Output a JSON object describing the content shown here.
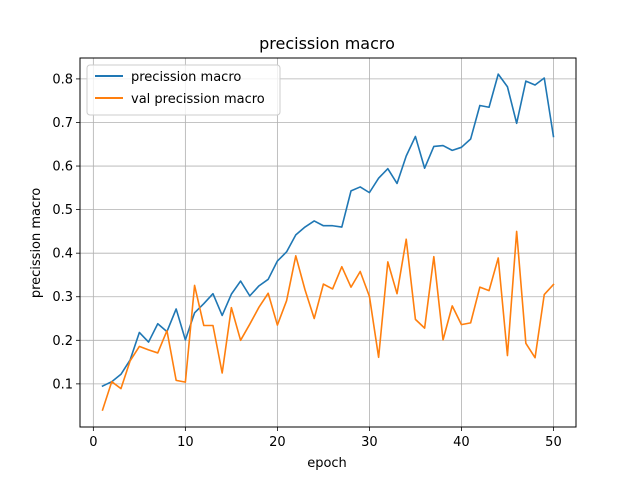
{
  "chart_data": {
    "type": "line",
    "title": "precission macro",
    "xlabel": "epoch",
    "ylabel": "precission macro",
    "xlim": [
      -1.45,
      52.45
    ],
    "ylim": [
      0.001,
      0.848
    ],
    "xticks": [
      0,
      10,
      20,
      30,
      40,
      50
    ],
    "yticks": [
      0.1,
      0.2,
      0.3,
      0.4,
      0.5,
      0.6,
      0.7,
      0.8
    ],
    "grid": true,
    "legend_position": "upper-left",
    "x": [
      1,
      2,
      3,
      4,
      5,
      6,
      7,
      8,
      9,
      10,
      11,
      12,
      13,
      14,
      15,
      16,
      17,
      18,
      19,
      20,
      21,
      22,
      23,
      24,
      25,
      26,
      27,
      28,
      29,
      30,
      31,
      32,
      33,
      34,
      35,
      36,
      37,
      38,
      39,
      40,
      41,
      42,
      43,
      44,
      45,
      46,
      47,
      48,
      49,
      50
    ],
    "series": [
      {
        "name": "precission macro",
        "color": "#1f77b4",
        "values": [
          0.095,
          0.105,
          0.122,
          0.155,
          0.218,
          0.196,
          0.238,
          0.22,
          0.272,
          0.201,
          0.263,
          0.284,
          0.307,
          0.257,
          0.306,
          0.336,
          0.302,
          0.325,
          0.34,
          0.382,
          0.403,
          0.442,
          0.46,
          0.474,
          0.463,
          0.463,
          0.46,
          0.543,
          0.552,
          0.539,
          0.572,
          0.594,
          0.56,
          0.623,
          0.668,
          0.595,
          0.645,
          0.647,
          0.636,
          0.643,
          0.662,
          0.739,
          0.735,
          0.811,
          0.782,
          0.698,
          0.795,
          0.786,
          0.802,
          0.668
        ]
      },
      {
        "name": "val precission macro",
        "color": "#ff7f0e",
        "values": [
          0.04,
          0.105,
          0.089,
          0.153,
          0.186,
          0.178,
          0.171,
          0.222,
          0.108,
          0.104,
          0.326,
          0.234,
          0.234,
          0.125,
          0.275,
          0.2,
          0.237,
          0.276,
          0.308,
          0.235,
          0.291,
          0.394,
          0.316,
          0.25,
          0.329,
          0.318,
          0.369,
          0.322,
          0.358,
          0.301,
          0.161,
          0.38,
          0.307,
          0.432,
          0.248,
          0.228,
          0.392,
          0.201,
          0.279,
          0.236,
          0.24,
          0.322,
          0.314,
          0.389,
          0.165,
          0.45,
          0.193,
          0.16,
          0.305,
          0.328
        ]
      }
    ]
  }
}
